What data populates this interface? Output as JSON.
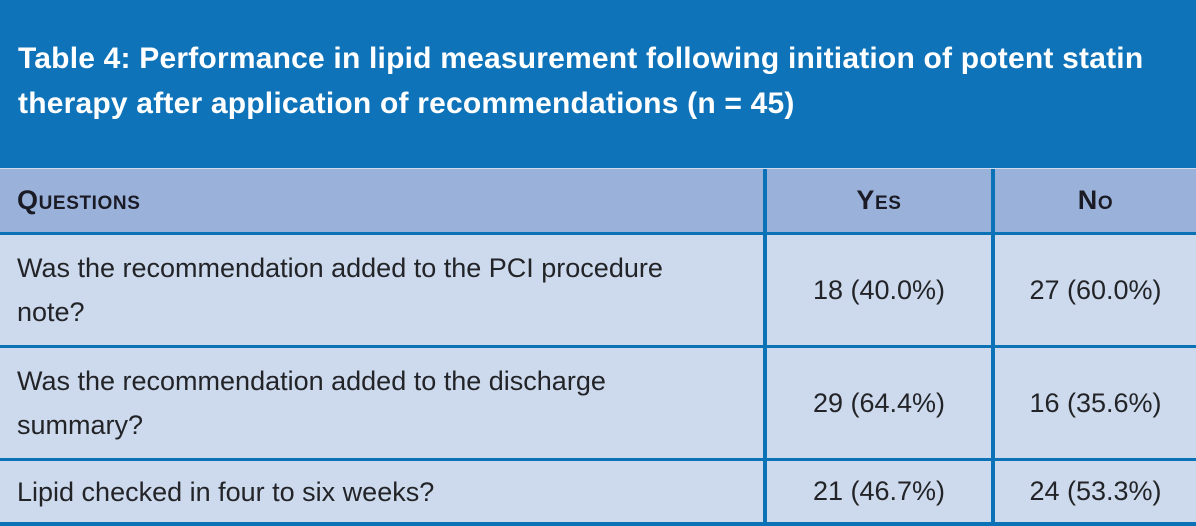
{
  "figure": {
    "title": "Table 4: Performance in lipid measurement following initiation of potent statin therapy after application of recommendations (n = 45)",
    "colors": {
      "title_bar_bg": "#0e73b8",
      "title_text": "#ffffff",
      "header_row_bg": "#9ab2da",
      "body_row_bg": "#cdd9ec",
      "grid_border": "#0b72b5",
      "body_text": "#222428"
    }
  },
  "table": {
    "columns": [
      {
        "label": "Questions"
      },
      {
        "label": "Yes"
      },
      {
        "label": "No"
      }
    ],
    "rows": [
      {
        "question": "Was the recommendation added to the PCI procedure note?",
        "yes": "18 (40.0%)",
        "no": "27 (60.0%)"
      },
      {
        "question": "Was the recommendation added to the discharge summary?",
        "yes": "29 (64.4%)",
        "no": "16 (35.6%)"
      },
      {
        "question": "Lipid checked in four to six weeks?",
        "yes": "21 (46.7%)",
        "no": "24 (53.3%)"
      }
    ]
  },
  "chart_data": {
    "type": "table",
    "title": "Table 4: Performance in lipid measurement following initiation of potent statin therapy after application of recommendations (n = 45)",
    "n": 45,
    "columns": [
      "Questions",
      "Yes",
      "No"
    ],
    "series": [
      {
        "question": "Was the recommendation added to the PCI procedure note?",
        "yes_count": 18,
        "yes_pct": 40.0,
        "no_count": 27,
        "no_pct": 60.0
      },
      {
        "question": "Was the recommendation added to the discharge summary?",
        "yes_count": 29,
        "yes_pct": 64.4,
        "no_count": 16,
        "no_pct": 35.6
      },
      {
        "question": "Lipid checked in four to six weeks?",
        "yes_count": 21,
        "yes_pct": 46.7,
        "no_count": 24,
        "no_pct": 53.3
      }
    ]
  }
}
